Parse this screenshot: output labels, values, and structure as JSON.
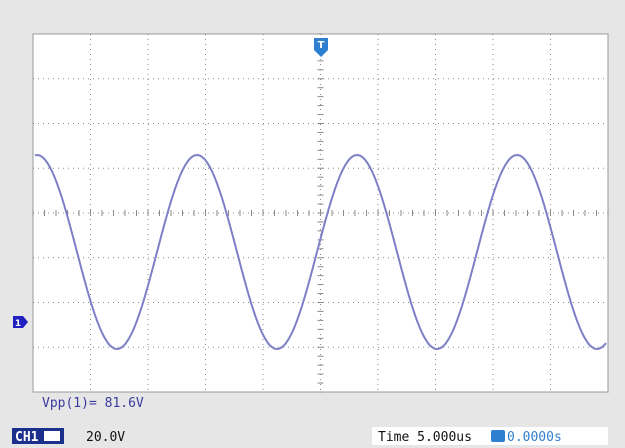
{
  "screen": {
    "trigger_marker": "T",
    "channel_marker": "1",
    "measurement": "Vpp(1)= 81.6V",
    "status_bar": {
      "channel": "CH1",
      "volts_per_div": "20.0V",
      "timebase": "Time 5.000us",
      "trigger_offset": "0.0000s"
    }
  }
}
